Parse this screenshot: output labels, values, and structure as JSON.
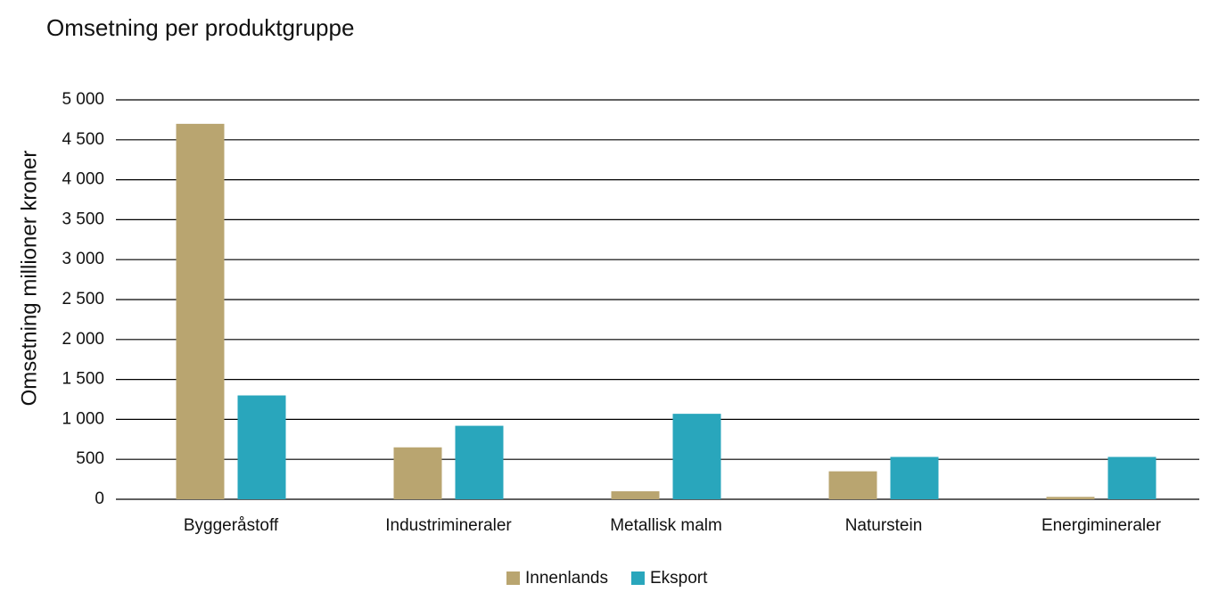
{
  "chart_data": {
    "type": "bar",
    "title": "Omsetning per produktgruppe",
    "ylabel": "Omsetning millioner kroner",
    "categories": [
      "Byggeråstoff",
      "Industrimineraler",
      "Metallisk malm",
      "Naturstein",
      "Energimineraler"
    ],
    "series": [
      {
        "name": "Innenlands",
        "color": "#b9a570",
        "values": [
          4700,
          650,
          100,
          350,
          30
        ]
      },
      {
        "name": "Eksport",
        "color": "#29a6bc",
        "values": [
          1300,
          920,
          1070,
          530,
          530
        ]
      }
    ],
    "ylim": [
      0,
      5000
    ],
    "yticks": [
      0,
      500,
      {
        "value": 1000,
        "label": "1 000"
      },
      {
        "value": 1500,
        "label": "1 500"
      },
      {
        "value": 2000,
        "label": "2 000"
      },
      {
        "value": 2500,
        "label": "2 500"
      },
      {
        "value": 3000,
        "label": "3 000"
      },
      {
        "value": 3500,
        "label": "3 500"
      },
      {
        "value": 4000,
        "label": "4 000"
      },
      {
        "value": 4500,
        "label": "4 500"
      },
      {
        "value": 5000,
        "label": "5 000"
      }
    ],
    "grid": true,
    "legend": "bottom"
  }
}
